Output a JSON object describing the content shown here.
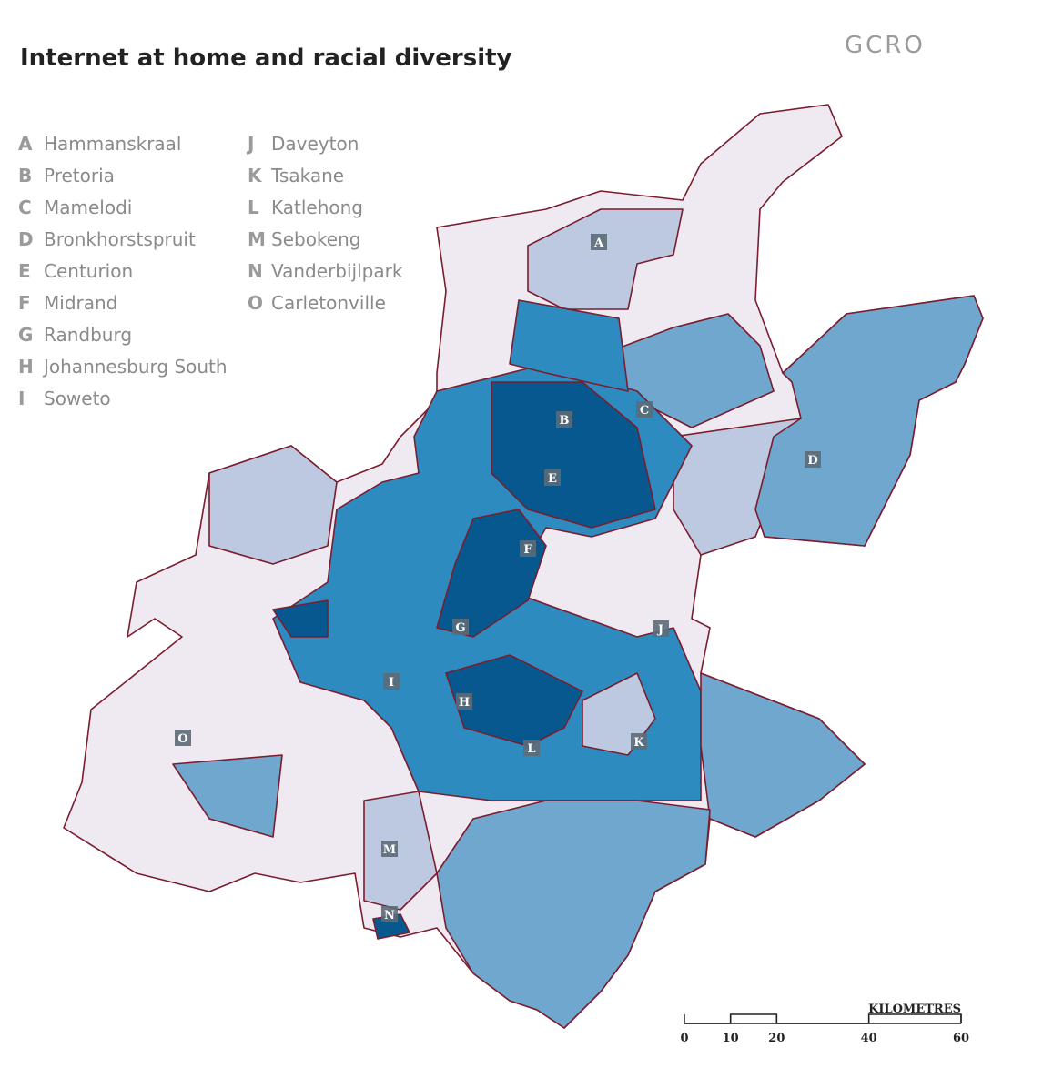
{
  "header": {
    "title": "Internet at home and racial diversity",
    "logo": "GCRO"
  },
  "legend": [
    {
      "letter": "A",
      "name": "Hammanskraal"
    },
    {
      "letter": "B",
      "name": "Pretoria"
    },
    {
      "letter": "C",
      "name": "Mamelodi"
    },
    {
      "letter": "D",
      "name": "Bronkhorstspruit"
    },
    {
      "letter": "E",
      "name": "Centurion"
    },
    {
      "letter": "F",
      "name": "Midrand"
    },
    {
      "letter": "G",
      "name": "Randburg"
    },
    {
      "letter": "H",
      "name": "Johannesburg South"
    },
    {
      "letter": "I",
      "name": "Soweto"
    },
    {
      "letter": "J",
      "name": "Daveyton"
    },
    {
      "letter": "K",
      "name": "Tsakane"
    },
    {
      "letter": "L",
      "name": "Katlehong"
    },
    {
      "letter": "M",
      "name": "Sebokeng"
    },
    {
      "letter": "N",
      "name": "Vanderbijlpark"
    },
    {
      "letter": "O",
      "name": "Carletonville"
    }
  ],
  "scale": {
    "label": "KILOMETRES",
    "ticks": [
      0,
      10,
      20,
      40,
      60
    ]
  }
}
